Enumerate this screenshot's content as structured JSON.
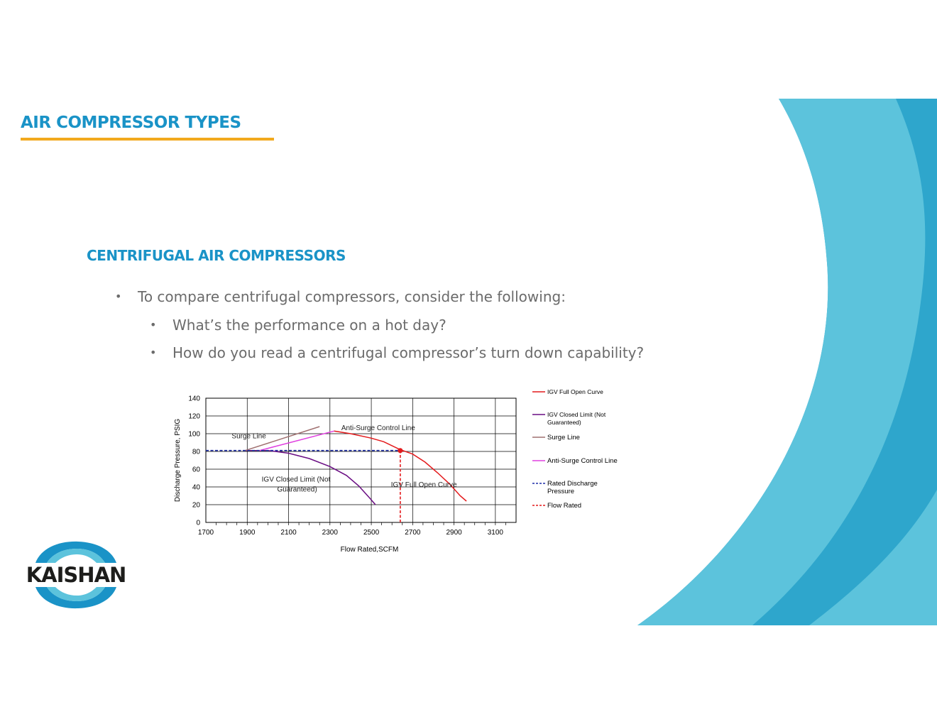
{
  "slide": {
    "title": "AIR COMPRESSOR TYPES",
    "section_heading": "CENTRIFUGAL AIR COMPRESSORS",
    "bullets": [
      "To compare centrifugal compressors, consider the following:",
      "What’s the performance on a hot day?",
      "How do you read a centrifugal compressor’s turn down capability?"
    ],
    "bullet_glyph": "•",
    "logo_text": "KAISHAN"
  },
  "colors": {
    "title_blue": "#1a93c7",
    "accent_yellow": "#f2a91e",
    "wave_dark": "#2ea6cc",
    "wave_light": "#5cc3dc",
    "body_text": "#6b6b6b"
  },
  "chart_data": {
    "type": "line",
    "xlabel": "Flow Rated,SCFM",
    "ylabel": "Discharge Pressure, PSIG",
    "xlim": [
      1700,
      3200
    ],
    "ylim": [
      0,
      140
    ],
    "x_ticks": [
      "1700",
      "1900",
      "2100",
      "2300",
      "2500",
      "2700",
      "2900",
      "3100"
    ],
    "x_tick_values": [
      1700,
      1900,
      2100,
      2300,
      2500,
      2700,
      2900,
      3100
    ],
    "y_ticks": [
      "0",
      "20",
      "40",
      "60",
      "80",
      "100",
      "120",
      "140"
    ],
    "y_tick_values": [
      0,
      20,
      40,
      60,
      80,
      100,
      120,
      140
    ],
    "grid": true,
    "legend_position": "right",
    "series": [
      {
        "name": "IGV Full Open Curve",
        "color": "#e31a1c",
        "dash": "solid",
        "x": [
          2320,
          2400,
          2500,
          2560,
          2640,
          2700,
          2760,
          2820,
          2880,
          2930,
          2960
        ],
        "y": [
          103,
          100,
          95,
          91,
          82,
          77,
          68,
          56,
          43,
          30,
          24
        ]
      },
      {
        "name": "IGV Closed Limit (Not Guaranteed)",
        "color": "#6a0d83",
        "dash": "solid",
        "x": [
          1890,
          2000,
          2100,
          2200,
          2300,
          2380,
          2440,
          2490,
          2520
        ],
        "y": [
          81,
          81,
          78,
          72,
          63,
          53,
          41,
          28,
          20
        ]
      },
      {
        "name": "Surge Line",
        "color": "#a07070",
        "dash": "solid",
        "x": [
          1890,
          2250
        ],
        "y": [
          81,
          108
        ]
      },
      {
        "name": "Anti-Surge Control Line",
        "color": "#e040e0",
        "dash": "solid",
        "x": [
          1960,
          2320
        ],
        "y": [
          81,
          103
        ]
      },
      {
        "name": "Rated Discharge Pressure",
        "color": "#1f2fa8",
        "dash": "dashed",
        "x": [
          1700,
          2640
        ],
        "y": [
          81,
          81
        ]
      },
      {
        "name": "Flow Rated",
        "color": "#e31a1c",
        "dash": "dashed",
        "x": [
          2640,
          2640
        ],
        "y": [
          0,
          81
        ]
      }
    ],
    "annotations": [
      {
        "text": "Surge Line",
        "x": 1825,
        "y": 95
      },
      {
        "text": "Anti-Surge Control Line",
        "x": 2355,
        "y": 104
      },
      {
        "text": "IGV Closed Limit (Not",
        "x": 1970,
        "y": 46
      },
      {
        "text": "Guaranteed)",
        "x": 2045,
        "y": 35
      },
      {
        "text": "IGV Full Open Curve",
        "x": 2595,
        "y": 40
      }
    ],
    "marker": {
      "x": 2640,
      "y": 81,
      "color": "#e31a1c"
    },
    "legend_entries": [
      {
        "lines": [
          "IGV Full Open Curve"
        ],
        "color": "#e31a1c",
        "dash": "solid",
        "bold": false
      },
      {
        "lines": [
          "IGV Closed Limit (Not",
          "Guaranteed)"
        ],
        "color": "#6a0d83",
        "dash": "solid",
        "bold": false
      },
      {
        "lines": [
          "Surge Line"
        ],
        "color": "#a07070",
        "dash": "solid",
        "bold": true
      },
      {
        "lines": [
          "Anti-Surge Control Line"
        ],
        "color": "#e040e0",
        "dash": "solid",
        "bold": true
      },
      {
        "lines": [
          "Rated Discharge",
          "Pressure"
        ],
        "color": "#1f2fa8",
        "dash": "dashed",
        "bold": true
      },
      {
        "lines": [
          "Flow Rated"
        ],
        "color": "#e31a1c",
        "dash": "dashed",
        "bold": true
      }
    ]
  }
}
